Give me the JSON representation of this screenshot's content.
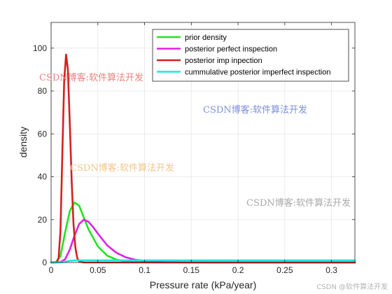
{
  "chart_data": {
    "type": "line",
    "xlabel": "Pressure rate (kPa/year)",
    "ylabel": "density",
    "xlim": [
      0,
      0.325
    ],
    "ylim": [
      0,
      112
    ],
    "xticks": [
      0,
      0.05,
      0.1,
      0.15,
      0.2,
      0.25,
      0.3
    ],
    "xtick_labels": [
      "0",
      "0.05",
      "0.1",
      "0.15",
      "0.2",
      "0.25",
      "0.3"
    ],
    "yticks": [
      0,
      20,
      40,
      60,
      80,
      100
    ],
    "ytick_labels": [
      "0",
      "20",
      "40",
      "60",
      "80",
      "100"
    ],
    "grid": true,
    "legend_position": "top-right",
    "series": [
      {
        "name": "prior density",
        "color": "#21e321",
        "x": [
          0,
          0.005,
          0.01,
          0.015,
          0.02,
          0.025,
          0.03,
          0.035,
          0.04,
          0.05,
          0.06,
          0.07,
          0.08,
          0.1,
          0.12,
          0.15,
          0.2,
          0.325
        ],
        "y": [
          0,
          0.2,
          3,
          14,
          24,
          28,
          26.5,
          21,
          15.5,
          7.5,
          3.2,
          1.3,
          0.5,
          0.1,
          0.02,
          0,
          0,
          0
        ]
      },
      {
        "name": "posterior perfect inspection",
        "color": "#e022e0",
        "x": [
          0,
          0.01,
          0.015,
          0.02,
          0.025,
          0.03,
          0.035,
          0.04,
          0.045,
          0.05,
          0.06,
          0.07,
          0.08,
          0.09,
          0.1,
          0.12,
          0.15,
          0.2,
          0.325
        ],
        "y": [
          0,
          0.2,
          1.5,
          6,
          12.5,
          18,
          20,
          19,
          16.5,
          13.5,
          8,
          4.5,
          2.4,
          1.3,
          0.7,
          0.2,
          0.03,
          0,
          0
        ]
      },
      {
        "name": "posterior imp inpection",
        "color": "#d42020",
        "x": [
          0,
          0.006,
          0.008,
          0.01,
          0.012,
          0.014,
          0.016,
          0.018,
          0.02,
          0.022,
          0.024,
          0.026,
          0.028,
          0.03,
          0.035,
          0.325
        ],
        "y": [
          0,
          0,
          2,
          15,
          50,
          85,
          97,
          90,
          65,
          38,
          18,
          7,
          2,
          0.5,
          0,
          0
        ]
      },
      {
        "name": "cummulative posterior imperfect inspection",
        "color": "#22e3e3",
        "x": [
          0,
          0.008,
          0.012,
          0.016,
          0.02,
          0.025,
          0.03,
          0.325
        ],
        "y": [
          0,
          0,
          0.15,
          0.5,
          0.8,
          0.95,
          1,
          1
        ]
      }
    ]
  },
  "watermarks": [
    {
      "text": "CSDN博客:软件算法开发",
      "color": "#f08080"
    },
    {
      "text": "CSDN博客:软件算法开发",
      "color": "#7b8fd8"
    },
    {
      "text": "CSDN博客:软件算法开发",
      "color": "#f3c58a"
    },
    {
      "text": "CSDN博客:软件算法开发",
      "color": "#a8a8a8"
    },
    {
      "text": "CSDN @软件算法开发",
      "color": "#b4b4b4"
    }
  ]
}
